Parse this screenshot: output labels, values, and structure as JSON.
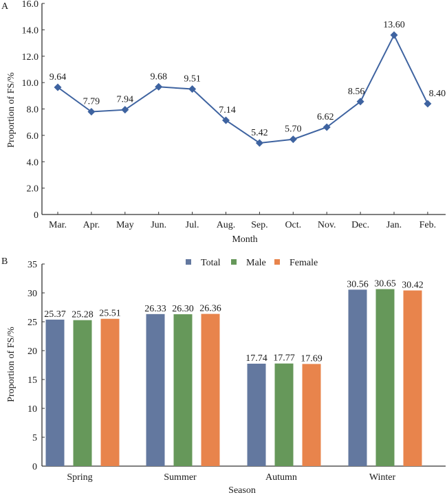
{
  "chart_data": [
    {
      "panel_label": "A",
      "type": "line",
      "title": "",
      "xlabel": "Month",
      "ylabel": "Proportion of FS/%",
      "ylim": [
        0,
        16
      ],
      "yticks": [
        0,
        2,
        4,
        6,
        8,
        10,
        12,
        14,
        16
      ],
      "ytick_labels": [
        "0",
        "2.0",
        "4.0",
        "6.0",
        "8.0",
        "10.0",
        "12.0",
        "14.0",
        "16.0"
      ],
      "categories": [
        "Mar.",
        "Apr.",
        "May",
        "Jun.",
        "Jul.",
        "Aug.",
        "Sep.",
        "Oct.",
        "Nov.",
        "Dec.",
        "Jan.",
        "Feb."
      ],
      "values": [
        9.64,
        7.79,
        7.94,
        9.68,
        9.51,
        7.14,
        5.42,
        5.7,
        6.62,
        8.56,
        13.6,
        8.4
      ],
      "data_labels": [
        "9.64",
        "7.79",
        "7.94",
        "9.68",
        "9.51",
        "7.14",
        "5.42",
        "5.70",
        "6.62",
        "8.56",
        "13.60",
        "8.40"
      ],
      "marker": "diamond",
      "color": "#3e63a0",
      "grid": false
    },
    {
      "panel_label": "B",
      "type": "bar",
      "title": "",
      "xlabel": "Season",
      "ylabel": "Proportion of FS/%",
      "ylim": [
        0,
        35
      ],
      "yticks": [
        0,
        5,
        10,
        15,
        20,
        25,
        30,
        35
      ],
      "ytick_labels": [
        "0",
        "5",
        "10",
        "15",
        "20",
        "25",
        "30",
        "35"
      ],
      "categories": [
        "Spring",
        "Summer",
        "Autumn",
        "Winter"
      ],
      "series": [
        {
          "name": "Total",
          "color": "#63789f",
          "values": [
            25.37,
            26.33,
            17.74,
            30.56
          ],
          "labels": [
            "25.37",
            "26.33",
            "17.74",
            "30.56"
          ]
        },
        {
          "name": "Male",
          "color": "#66985a",
          "values": [
            25.28,
            26.3,
            17.77,
            30.65
          ],
          "labels": [
            "25.28",
            "26.30",
            "17.77",
            "30.65"
          ]
        },
        {
          "name": "Female",
          "color": "#e8844c",
          "values": [
            25.51,
            26.36,
            17.69,
            30.42
          ],
          "labels": [
            "25.51",
            "26.36",
            "17.69",
            "30.42"
          ]
        }
      ],
      "legend_position": "top-center",
      "grid": false
    }
  ]
}
